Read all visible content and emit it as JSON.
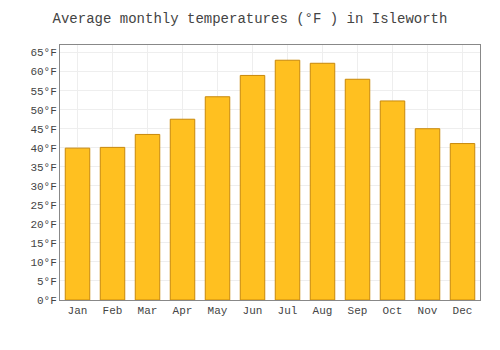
{
  "chart_data": {
    "type": "bar",
    "title": "Average monthly temperatures (°F ) in Isleworth",
    "categories": [
      "Jan",
      "Feb",
      "Mar",
      "Apr",
      "May",
      "Jun",
      "Jul",
      "Aug",
      "Sep",
      "Oct",
      "Nov",
      "Dec"
    ],
    "values": [
      39.9,
      40.1,
      43.5,
      47.5,
      53.4,
      59.0,
      63.0,
      62.2,
      58.0,
      52.3,
      45.0,
      41.1
    ],
    "color": "#FFC020",
    "ylim": [
      0,
      67
    ],
    "yticks": [
      {
        "value": 0,
        "label": "0°F"
      },
      {
        "value": 5,
        "label": "5°F"
      },
      {
        "value": 10,
        "label": "10°F"
      },
      {
        "value": 15,
        "label": "15°F"
      },
      {
        "value": 20,
        "label": "20°F"
      },
      {
        "value": 25,
        "label": "25°F"
      },
      {
        "value": 30,
        "label": "30°F"
      },
      {
        "value": 35,
        "label": "35°F"
      },
      {
        "value": 40,
        "label": "40°F"
      },
      {
        "value": 45,
        "label": "45°F"
      },
      {
        "value": 50,
        "label": "50°F"
      },
      {
        "value": 55,
        "label": "55°F"
      },
      {
        "value": 60,
        "label": "60°F"
      },
      {
        "value": 65,
        "label": "65°F"
      }
    ],
    "grid": true
  }
}
